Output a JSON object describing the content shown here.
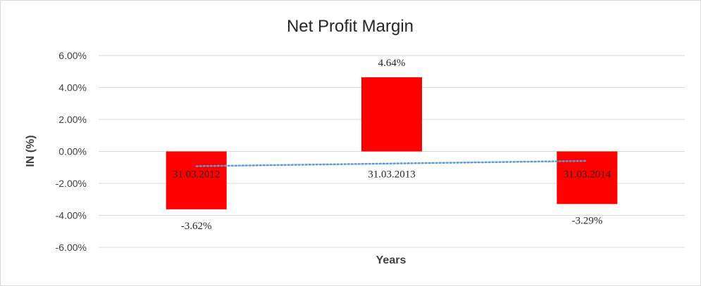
{
  "chart_data": {
    "type": "bar",
    "title": "Net Profit Margin",
    "xlabel": "Years",
    "ylabel": "IN (%)",
    "categories": [
      "31.03.2012",
      "31.03.2013",
      "31.03.2014"
    ],
    "values": [
      -3.62,
      4.64,
      -3.29
    ],
    "data_labels": [
      "-3.62%",
      "4.64%",
      "-3.29%"
    ],
    "ylim": [
      -6,
      6
    ],
    "yticks": [
      6,
      4,
      2,
      0,
      -2,
      -4,
      -6
    ],
    "ytick_labels": [
      "6.00%",
      "4.00%",
      "2.00%",
      "0.00%",
      "-2.00%",
      "-4.00%",
      "-6.00%"
    ],
    "grid": true,
    "bar_color": "#ff0000",
    "trendline": {
      "type": "linear",
      "style": "dotted",
      "color": "#5b9bd5"
    }
  }
}
